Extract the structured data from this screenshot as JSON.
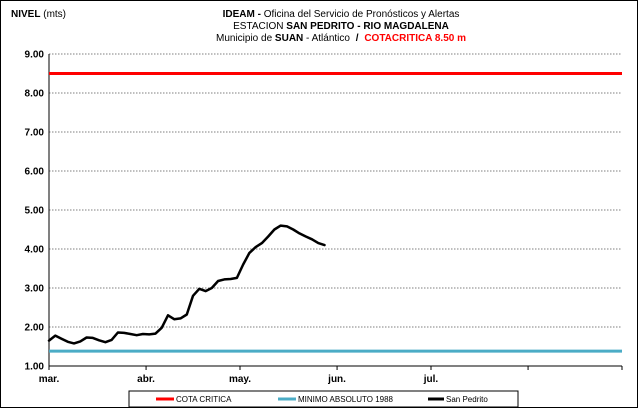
{
  "header": {
    "y_title_bold": "NIVEL",
    "y_title_unit": "(mts)",
    "line1_bold": "IDEAM -",
    "line1_rest": "Oficina del Servicio de Pronósticos y Alertas",
    "line2_prefix": "ESTACION",
    "line2_bold": "SAN PEDRITO - RIO MAGDALENA",
    "line3_prefix": "Municipio de",
    "line3_bold": "SUAN",
    "line3_suffix": "- Atlántico",
    "line3_sep": "/",
    "line3_red": "COTACRITICA 8.50  m"
  },
  "colors": {
    "cota_critica": "#ff0000",
    "minimo": "#4bacc6",
    "series": "#000000"
  },
  "chart_data": {
    "type": "line",
    "title": "IDEAM - Oficina del Servicio de Pronósticos y Alertas / ESTACION SAN PEDRITO - RIO MAGDALENA / Municipio de SUAN - Atlántico / COTACRITICA 8.50 m",
    "ylabel": "NIVEL (mts)",
    "xlabel": "",
    "ylim": [
      1.0,
      9.0
    ],
    "yticks": [
      "1.00",
      "2.00",
      "3.00",
      "4.00",
      "5.00",
      "6.00",
      "7.00",
      "8.00",
      "9.00"
    ],
    "x_ticks": [
      "mar.",
      "abr.",
      "may.",
      "jun.",
      "jul."
    ],
    "x_range": [
      "2014-03-01",
      "2014-08-31"
    ],
    "grid": "horizontal dashed",
    "legend_position": "bottom",
    "reference_lines": [
      {
        "name": "COTA CRITICA",
        "value": 8.5
      },
      {
        "name": "MINIMO ABSOLUTO 1988",
        "value": 1.38
      }
    ],
    "series": [
      {
        "name": "San Pedrito",
        "x": [
          "2014-03-01",
          "2014-03-03",
          "2014-03-05",
          "2014-03-07",
          "2014-03-09",
          "2014-03-11",
          "2014-03-13",
          "2014-03-15",
          "2014-03-17",
          "2014-03-19",
          "2014-03-21",
          "2014-03-23",
          "2014-03-25",
          "2014-03-27",
          "2014-03-29",
          "2014-03-31",
          "2014-04-02",
          "2014-04-04",
          "2014-04-06",
          "2014-04-08",
          "2014-04-10",
          "2014-04-12",
          "2014-04-14",
          "2014-04-16",
          "2014-04-18",
          "2014-04-20",
          "2014-04-22",
          "2014-04-24",
          "2014-04-26",
          "2014-04-28",
          "2014-04-30",
          "2014-05-02",
          "2014-05-04",
          "2014-05-06",
          "2014-05-08",
          "2014-05-10",
          "2014-05-12",
          "2014-05-14",
          "2014-05-16",
          "2014-05-18",
          "2014-05-20",
          "2014-05-22",
          "2014-05-24",
          "2014-05-26",
          "2014-05-28"
        ],
        "y": [
          1.65,
          1.78,
          1.7,
          1.62,
          1.58,
          1.63,
          1.73,
          1.72,
          1.66,
          1.61,
          1.67,
          1.86,
          1.85,
          1.82,
          1.79,
          1.82,
          1.81,
          1.83,
          1.98,
          2.3,
          2.2,
          2.22,
          2.32,
          2.8,
          2.98,
          2.92,
          3.0,
          3.18,
          3.22,
          3.23,
          3.26,
          3.6,
          3.9,
          4.05,
          4.15,
          4.32,
          4.5,
          4.6,
          4.58,
          4.5,
          4.4,
          4.32,
          4.25,
          4.15,
          4.1
        ]
      }
    ]
  }
}
